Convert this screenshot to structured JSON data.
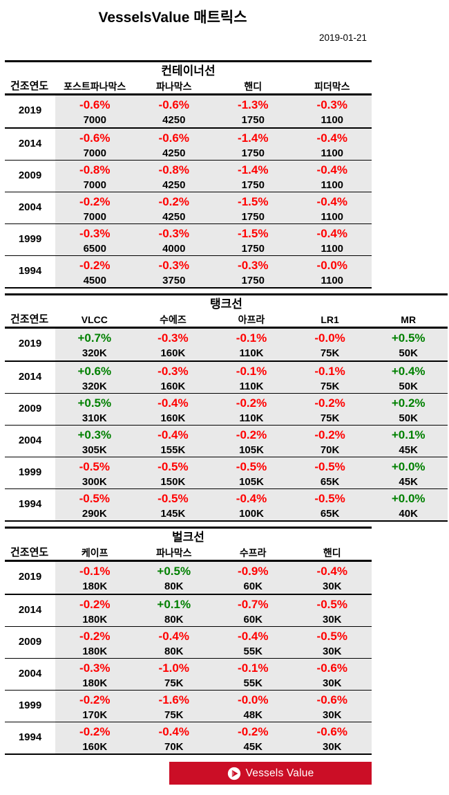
{
  "page": {
    "title": "VesselsValue 매트릭스",
    "date": "2019-01-21"
  },
  "colors": {
    "positive": "#008000",
    "negative": "#FF0000",
    "row_band": "#E9E9E9",
    "banner": "#CB0E26"
  },
  "footer": {
    "logo_text": "Vessels Value",
    "logo_icon": "vesselsvalue-circle-sail-icon"
  },
  "chart_data": [
    {
      "type": "table",
      "title": "컨테이너선",
      "row_header": "건조연도",
      "columns": [
        "포스트파나막스",
        "파나막스",
        "핸디",
        "피더막스"
      ],
      "rows": [
        {
          "year": "2019",
          "cells": [
            {
              "pct": "-0.6%",
              "value": "7000"
            },
            {
              "pct": "-0.6%",
              "value": "4250"
            },
            {
              "pct": "-1.3%",
              "value": "1750"
            },
            {
              "pct": "-0.3%",
              "value": "1100"
            }
          ]
        },
        {
          "year": "2014",
          "cells": [
            {
              "pct": "-0.6%",
              "value": "7000"
            },
            {
              "pct": "-0.6%",
              "value": "4250"
            },
            {
              "pct": "-1.4%",
              "value": "1750"
            },
            {
              "pct": "-0.4%",
              "value": "1100"
            }
          ]
        },
        {
          "year": "2009",
          "cells": [
            {
              "pct": "-0.8%",
              "value": "7000"
            },
            {
              "pct": "-0.8%",
              "value": "4250"
            },
            {
              "pct": "-1.4%",
              "value": "1750"
            },
            {
              "pct": "-0.4%",
              "value": "1100"
            }
          ]
        },
        {
          "year": "2004",
          "cells": [
            {
              "pct": "-0.2%",
              "value": "7000"
            },
            {
              "pct": "-0.2%",
              "value": "4250"
            },
            {
              "pct": "-1.5%",
              "value": "1750"
            },
            {
              "pct": "-0.4%",
              "value": "1100"
            }
          ]
        },
        {
          "year": "1999",
          "cells": [
            {
              "pct": "-0.3%",
              "value": "6500"
            },
            {
              "pct": "-0.3%",
              "value": "4000"
            },
            {
              "pct": "-1.5%",
              "value": "1750"
            },
            {
              "pct": "-0.4%",
              "value": "1100"
            }
          ]
        },
        {
          "year": "1994",
          "cells": [
            {
              "pct": "-0.2%",
              "value": "4500"
            },
            {
              "pct": "-0.3%",
              "value": "3750"
            },
            {
              "pct": "-0.3%",
              "value": "1750"
            },
            {
              "pct": "-0.0%",
              "value": "1100"
            }
          ]
        }
      ]
    },
    {
      "type": "table",
      "title": "탱크선",
      "row_header": "건조연도",
      "columns": [
        "VLCC",
        "수에즈",
        "아프라",
        "LR1",
        "MR"
      ],
      "rows": [
        {
          "year": "2019",
          "cells": [
            {
              "pct": "+0.7%",
              "value": "320K"
            },
            {
              "pct": "-0.3%",
              "value": "160K"
            },
            {
              "pct": "-0.1%",
              "value": "110K"
            },
            {
              "pct": "-0.0%",
              "value": "75K"
            },
            {
              "pct": "+0.5%",
              "value": "50K"
            }
          ]
        },
        {
          "year": "2014",
          "cells": [
            {
              "pct": "+0.6%",
              "value": "320K"
            },
            {
              "pct": "-0.3%",
              "value": "160K"
            },
            {
              "pct": "-0.1%",
              "value": "110K"
            },
            {
              "pct": "-0.1%",
              "value": "75K"
            },
            {
              "pct": "+0.4%",
              "value": "50K"
            }
          ]
        },
        {
          "year": "2009",
          "cells": [
            {
              "pct": "+0.5%",
              "value": "310K"
            },
            {
              "pct": "-0.4%",
              "value": "160K"
            },
            {
              "pct": "-0.2%",
              "value": "110K"
            },
            {
              "pct": "-0.2%",
              "value": "75K"
            },
            {
              "pct": "+0.2%",
              "value": "50K"
            }
          ]
        },
        {
          "year": "2004",
          "cells": [
            {
              "pct": "+0.3%",
              "value": "305K"
            },
            {
              "pct": "-0.4%",
              "value": "155K"
            },
            {
              "pct": "-0.2%",
              "value": "105K"
            },
            {
              "pct": "-0.2%",
              "value": "70K"
            },
            {
              "pct": "+0.1%",
              "value": "45K"
            }
          ]
        },
        {
          "year": "1999",
          "cells": [
            {
              "pct": "-0.5%",
              "value": "300K"
            },
            {
              "pct": "-0.5%",
              "value": "150K"
            },
            {
              "pct": "-0.5%",
              "value": "105K"
            },
            {
              "pct": "-0.5%",
              "value": "65K"
            },
            {
              "pct": "+0.0%",
              "value": "45K"
            }
          ]
        },
        {
          "year": "1994",
          "cells": [
            {
              "pct": "-0.5%",
              "value": "290K"
            },
            {
              "pct": "-0.5%",
              "value": "145K"
            },
            {
              "pct": "-0.4%",
              "value": "100K"
            },
            {
              "pct": "-0.5%",
              "value": "65K"
            },
            {
              "pct": "+0.0%",
              "value": "40K"
            }
          ]
        }
      ]
    },
    {
      "type": "table",
      "title": "벌크선",
      "row_header": "건조연도",
      "columns": [
        "케이프",
        "파나막스",
        "수프라",
        "핸디"
      ],
      "rows": [
        {
          "year": "2019",
          "cells": [
            {
              "pct": "-0.1%",
              "value": "180K"
            },
            {
              "pct": "+0.5%",
              "value": "80K"
            },
            {
              "pct": "-0.9%",
              "value": "60K"
            },
            {
              "pct": "-0.4%",
              "value": "30K"
            }
          ]
        },
        {
          "year": "2014",
          "cells": [
            {
              "pct": "-0.2%",
              "value": "180K"
            },
            {
              "pct": "+0.1%",
              "value": "80K"
            },
            {
              "pct": "-0.7%",
              "value": "60K"
            },
            {
              "pct": "-0.5%",
              "value": "30K"
            }
          ]
        },
        {
          "year": "2009",
          "cells": [
            {
              "pct": "-0.2%",
              "value": "180K"
            },
            {
              "pct": "-0.4%",
              "value": "80K"
            },
            {
              "pct": "-0.4%",
              "value": "55K"
            },
            {
              "pct": "-0.5%",
              "value": "30K"
            }
          ]
        },
        {
          "year": "2004",
          "cells": [
            {
              "pct": "-0.3%",
              "value": "180K"
            },
            {
              "pct": "-1.0%",
              "value": "75K"
            },
            {
              "pct": "-0.1%",
              "value": "55K"
            },
            {
              "pct": "-0.6%",
              "value": "30K"
            }
          ]
        },
        {
          "year": "1999",
          "cells": [
            {
              "pct": "-0.2%",
              "value": "170K"
            },
            {
              "pct": "-1.6%",
              "value": "75K"
            },
            {
              "pct": "-0.0%",
              "value": "48K"
            },
            {
              "pct": "-0.6%",
              "value": "30K"
            }
          ]
        },
        {
          "year": "1994",
          "cells": [
            {
              "pct": "-0.2%",
              "value": "160K"
            },
            {
              "pct": "-0.4%",
              "value": "70K"
            },
            {
              "pct": "-0.2%",
              "value": "45K"
            },
            {
              "pct": "-0.6%",
              "value": "30K"
            }
          ]
        }
      ]
    }
  ]
}
